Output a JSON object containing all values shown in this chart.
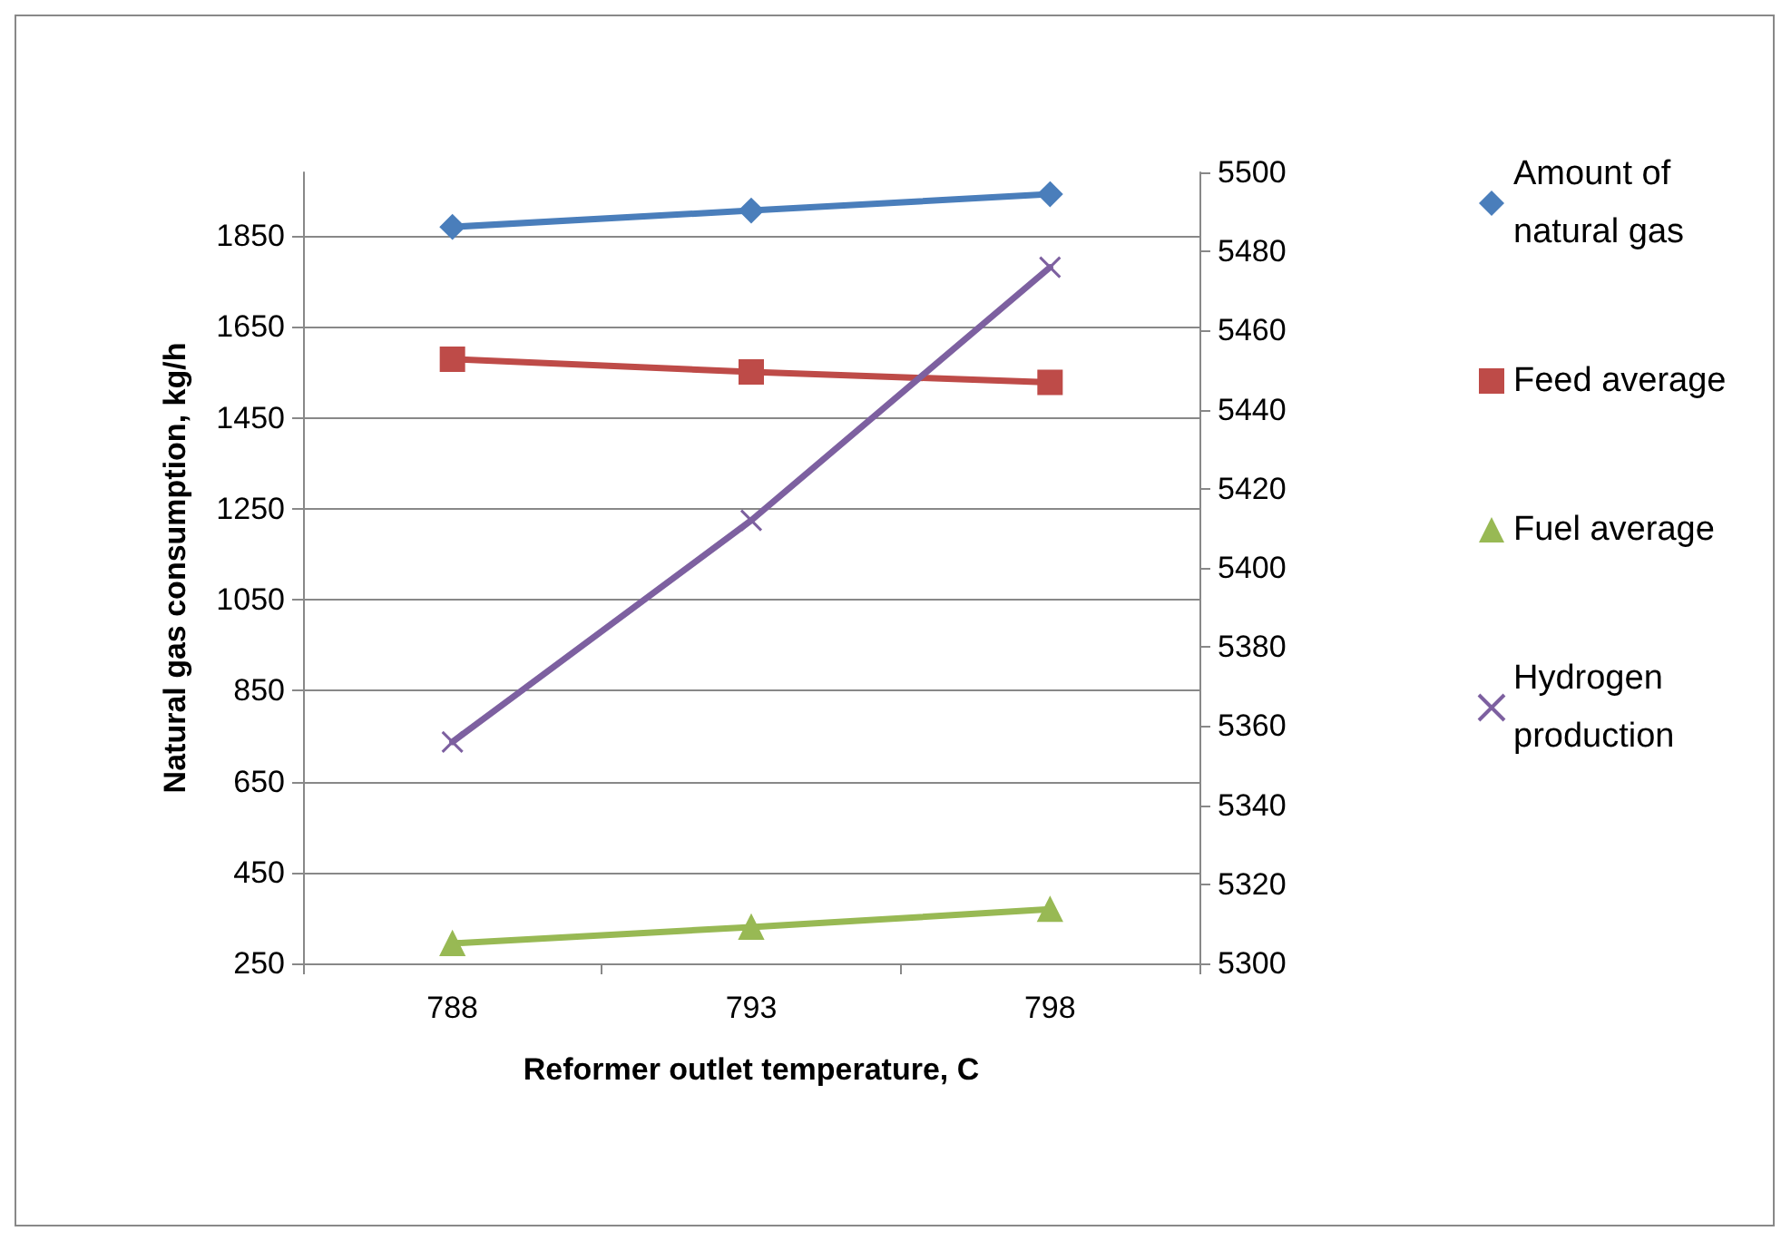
{
  "chart_data": {
    "type": "line",
    "xlabel": "Reformer outlet temperature, C",
    "ylabel": "Natural gas consumption, kg/h",
    "categories": [
      "788",
      "793",
      "798"
    ],
    "series": [
      {
        "name": "Amount of natural gas",
        "color": "#4a7ebb",
        "marker": "diamond",
        "values": [
          1870,
          1906,
          1942
        ]
      },
      {
        "name": "Feed average",
        "color": "#be4b48",
        "marker": "square",
        "values": [
          1579,
          1551,
          1528
        ]
      },
      {
        "name": "Fuel average",
        "color": "#98b954",
        "marker": "triangle",
        "values": [
          294,
          330,
          369
        ]
      },
      {
        "name": "Hydrogen production",
        "color": "#7d60a0",
        "marker": "cross",
        "axis": "y2",
        "values": [
          5356,
          5412,
          5476
        ]
      }
    ],
    "ylim": [
      250,
      1990
    ],
    "yticks": [
      250,
      450,
      650,
      850,
      1050,
      1250,
      1450,
      1650,
      1850
    ],
    "y2lim": [
      5300,
      5500
    ],
    "y2ticks": [
      5300,
      5320,
      5340,
      5360,
      5380,
      5400,
      5420,
      5440,
      5460,
      5480,
      5500
    ],
    "grid": "y",
    "legend": "right",
    "line_style": "solid"
  }
}
